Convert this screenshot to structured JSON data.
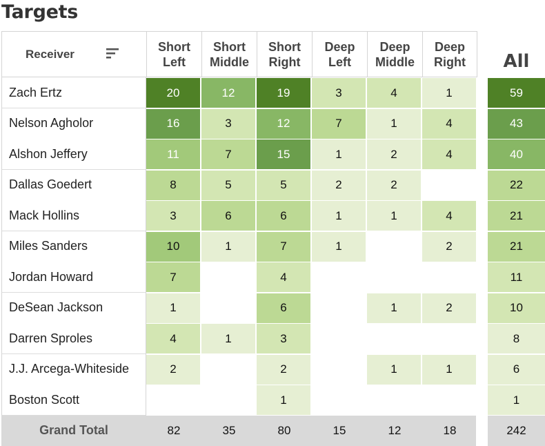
{
  "title": "Targets",
  "receiver_header": "Receiver",
  "all_header": "All",
  "grand_total_label": "Grand Total",
  "colors": {
    "scale": [
      "#e6efd3",
      "#d3e6b3",
      "#bcd994",
      "#a2c97a",
      "#88b765",
      "#6b9e4c",
      "#4f8126"
    ],
    "total_row_bg": "#d9d9d9"
  },
  "icons": {
    "sort": "sort-icon"
  },
  "chart_data": {
    "type": "table",
    "title": "Targets",
    "row_header": "Receiver",
    "columns": [
      "Short Left",
      "Short Middle",
      "Short Right",
      "Deep Left",
      "Deep Middle",
      "Deep Right"
    ],
    "total_column": "All",
    "rows": [
      {
        "receiver": "Zach Ertz",
        "values": [
          20,
          12,
          19,
          3,
          4,
          1
        ],
        "all": 59
      },
      {
        "receiver": "Nelson Agholor",
        "values": [
          16,
          3,
          12,
          7,
          1,
          4
        ],
        "all": 43
      },
      {
        "receiver": "Alshon Jeffery",
        "values": [
          11,
          7,
          15,
          1,
          2,
          4
        ],
        "all": 40
      },
      {
        "receiver": "Dallas Goedert",
        "values": [
          8,
          5,
          5,
          2,
          2,
          null
        ],
        "all": 22
      },
      {
        "receiver": "Mack Hollins",
        "values": [
          3,
          6,
          6,
          1,
          1,
          4
        ],
        "all": 21
      },
      {
        "receiver": "Miles Sanders",
        "values": [
          10,
          1,
          7,
          1,
          null,
          2
        ],
        "all": 21
      },
      {
        "receiver": "Jordan Howard",
        "values": [
          7,
          null,
          4,
          null,
          null,
          null
        ],
        "all": 11
      },
      {
        "receiver": "DeSean Jackson",
        "values": [
          1,
          null,
          6,
          null,
          1,
          2
        ],
        "all": 10
      },
      {
        "receiver": "Darren Sproles",
        "values": [
          4,
          1,
          3,
          null,
          null,
          null
        ],
        "all": 8
      },
      {
        "receiver": "J.J. Arcega-Whiteside",
        "values": [
          2,
          null,
          2,
          null,
          1,
          1
        ],
        "all": 6
      },
      {
        "receiver": "Boston Scott",
        "values": [
          null,
          null,
          1,
          null,
          null,
          null
        ],
        "all": 1
      }
    ],
    "grand_total": {
      "label": "Grand Total",
      "values": [
        82,
        35,
        80,
        15,
        12,
        18
      ],
      "all": 242
    }
  }
}
